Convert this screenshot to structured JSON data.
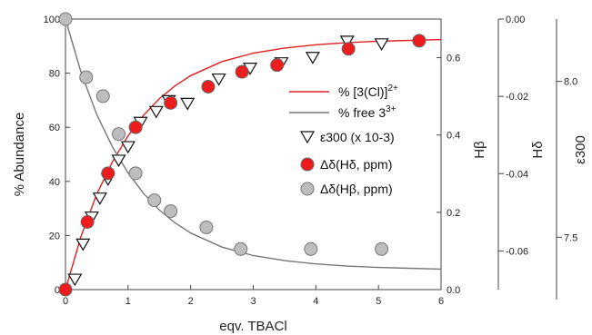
{
  "chart_data": {
    "type": "scatter",
    "xlabel": "eqv. TBACl",
    "ylabel": "% Abundance",
    "xlim": [
      0,
      6
    ],
    "ylim": [
      0,
      100
    ],
    "xticks": [
      "0",
      "1",
      "2",
      "3",
      "4",
      "5",
      "6"
    ],
    "yticks": [
      "0",
      "20",
      "40",
      "60",
      "80",
      "100"
    ],
    "hbeta_axis": {
      "label": "Hβ",
      "lim": [
        0.0,
        0.7
      ],
      "ticks": [
        "0.0",
        "0.2",
        "0.4",
        "0.6"
      ]
    },
    "hdelta_axis": {
      "label": "Hδ",
      "lim": [
        -0.07,
        0.0
      ],
      "ticks": [
        "0.00",
        "-0.02",
        "-0.04",
        "-0.06"
      ]
    },
    "eps_axis": {
      "label": "ε300",
      "lim": [
        7.3,
        8.2
      ],
      "ticks": [
        "8.0",
        "7.5"
      ]
    },
    "series": [
      {
        "name": "% [3(Cl)]2+",
        "kind": "line",
        "color": "#e02020",
        "x": [
          0,
          0.25,
          0.5,
          0.75,
          1,
          1.25,
          1.5,
          1.75,
          2,
          2.5,
          3,
          3.5,
          4,
          4.5,
          5,
          5.5,
          6
        ],
        "y": [
          0,
          19.8,
          35.3,
          47.2,
          56.8,
          64.5,
          70.6,
          75.3,
          79.1,
          84.3,
          87.4,
          89.3,
          90.5,
          91.3,
          91.8,
          92.1,
          92.4
        ]
      },
      {
        "name": "% free 33+",
        "kind": "line",
        "color": "#777777",
        "x": [
          0,
          0.25,
          0.5,
          0.75,
          1,
          1.25,
          1.5,
          1.75,
          2,
          2.5,
          3,
          3.5,
          4,
          4.5,
          5,
          5.5,
          6
        ],
        "y": [
          100,
          80.2,
          64.7,
          52.8,
          43.2,
          35.5,
          29.4,
          24.7,
          20.9,
          15.7,
          12.6,
          10.7,
          9.5,
          8.7,
          8.2,
          7.9,
          7.6
        ]
      },
      {
        "name": "ε300 (x 10-3)",
        "kind": "triangle",
        "x": [
          0.15,
          0.28,
          0.42,
          0.55,
          0.68,
          0.85,
          1.0,
          1.2,
          1.45,
          1.65,
          1.95,
          2.45,
          2.95,
          3.45,
          3.95,
          4.5,
          5.05
        ],
        "y": [
          4,
          17,
          27,
          34,
          41,
          48,
          53,
          62,
          66,
          70,
          69,
          78,
          82,
          84,
          86,
          92,
          91
        ]
      },
      {
        "name": "Δδ(Hδ, ppm)",
        "kind": "red-circle",
        "x": [
          0,
          0.35,
          0.68,
          1.12,
          1.68,
          2.28,
          2.82,
          3.38,
          4.52,
          5.65
        ],
        "y": [
          0,
          25,
          43,
          60,
          69,
          75,
          80.5,
          83,
          89,
          92
        ]
      },
      {
        "name": "Δδ(Hβ, ppm)",
        "kind": "gray-circle",
        "x": [
          0,
          0.33,
          0.6,
          0.85,
          1.12,
          1.42,
          1.68,
          2.25,
          2.8,
          3.92,
          5.05
        ],
        "y": [
          100,
          78.5,
          71.5,
          57.5,
          43,
          33,
          29,
          23,
          15,
          15,
          15
        ]
      }
    ],
    "legend": [
      {
        "label": "% [3(Cl)]",
        "sup": "2+",
        "symbol": "line-red"
      },
      {
        "label": "% free 3",
        "sup": "3+",
        "symbol": "line-gray"
      },
      {
        "label": "ε300 (x 10-3)",
        "symbol": "triangle"
      },
      {
        "label": "Δδ(Hδ, ppm)",
        "symbol": "red-circle"
      },
      {
        "label": "Δδ(Hβ, ppm)",
        "symbol": "gray-circle"
      }
    ],
    "legend_position": "right-middle",
    "grid": false
  }
}
